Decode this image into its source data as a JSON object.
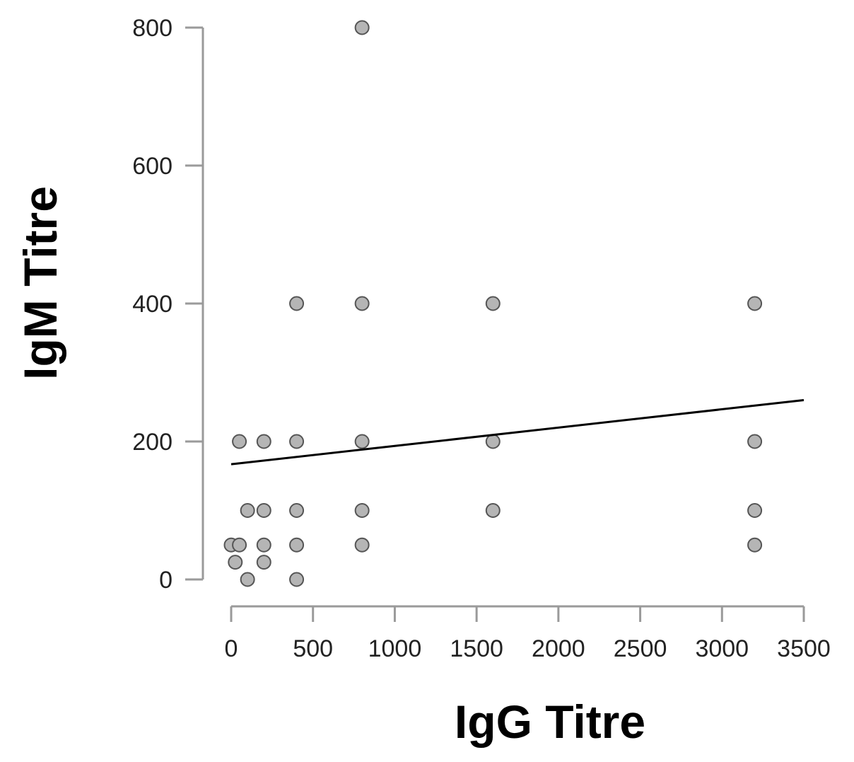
{
  "chart_data": {
    "type": "scatter",
    "xlabel": "IgG Titre",
    "ylabel": "IgM Titre",
    "xlim": [
      0,
      3500
    ],
    "ylim": [
      0,
      800
    ],
    "x_ticks": [
      0,
      500,
      1000,
      1500,
      2000,
      2500,
      3000,
      3500
    ],
    "x_tick_labels": [
      "0",
      "500",
      "1000",
      "1500",
      "2000",
      "2500",
      "3000",
      "3500"
    ],
    "y_ticks": [
      0,
      200,
      400,
      600,
      800
    ],
    "y_tick_labels": [
      "0",
      "200",
      "400",
      "600",
      "800"
    ],
    "grid": false,
    "legend": false,
    "point_color": "#b5b5b5",
    "point_edge_color": "#555555",
    "trend_line_color": "#000000",
    "points": [
      {
        "x": 0,
        "y": 50
      },
      {
        "x": 25,
        "y": 25
      },
      {
        "x": 50,
        "y": 50
      },
      {
        "x": 50,
        "y": 200
      },
      {
        "x": 100,
        "y": 0
      },
      {
        "x": 100,
        "y": 100
      },
      {
        "x": 200,
        "y": 25
      },
      {
        "x": 200,
        "y": 50
      },
      {
        "x": 200,
        "y": 100
      },
      {
        "x": 200,
        "y": 200
      },
      {
        "x": 400,
        "y": 0
      },
      {
        "x": 400,
        "y": 50
      },
      {
        "x": 400,
        "y": 100
      },
      {
        "x": 400,
        "y": 200
      },
      {
        "x": 400,
        "y": 400
      },
      {
        "x": 800,
        "y": 50
      },
      {
        "x": 800,
        "y": 100
      },
      {
        "x": 800,
        "y": 200
      },
      {
        "x": 800,
        "y": 400
      },
      {
        "x": 800,
        "y": 800
      },
      {
        "x": 1600,
        "y": 100
      },
      {
        "x": 1600,
        "y": 200
      },
      {
        "x": 1600,
        "y": 400
      },
      {
        "x": 3200,
        "y": 50
      },
      {
        "x": 3200,
        "y": 100
      },
      {
        "x": 3200,
        "y": 200
      },
      {
        "x": 3200,
        "y": 400
      }
    ],
    "trend_line": {
      "x": [
        0,
        3500
      ],
      "y": [
        167,
        260
      ]
    }
  }
}
